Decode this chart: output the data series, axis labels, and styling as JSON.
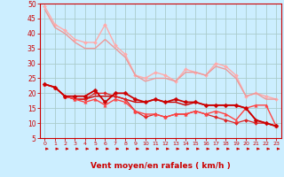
{
  "background_color": "#cceeff",
  "grid_color": "#aacccc",
  "xlabel": "Vent moyen/en rafales ( km/h )",
  "xlabel_color": "#cc0000",
  "tick_color": "#cc0000",
  "xlim": [
    -0.5,
    23.5
  ],
  "ylim": [
    5,
    50
  ],
  "yticks": [
    5,
    10,
    15,
    20,
    25,
    30,
    35,
    40,
    45,
    50
  ],
  "xticks": [
    0,
    1,
    2,
    3,
    4,
    5,
    6,
    7,
    8,
    9,
    10,
    11,
    12,
    13,
    14,
    15,
    16,
    17,
    18,
    19,
    20,
    21,
    22,
    23
  ],
  "lines": [
    {
      "x": [
        0,
        1,
        2,
        3,
        4,
        5,
        6,
        7,
        8,
        9,
        10,
        11,
        12,
        13,
        14,
        15,
        16,
        17,
        18,
        19,
        20,
        21,
        22,
        23
      ],
      "y": [
        49,
        43,
        41,
        38,
        37,
        37,
        43,
        36,
        33,
        26,
        25,
        27,
        26,
        24,
        28,
        27,
        26,
        30,
        29,
        26,
        19,
        20,
        19,
        18
      ],
      "color": "#ffaaaa",
      "linewidth": 1.0,
      "marker": "D",
      "markersize": 2.0,
      "zorder": 2
    },
    {
      "x": [
        0,
        1,
        2,
        3,
        4,
        5,
        6,
        7,
        8,
        9,
        10,
        11,
        12,
        13,
        14,
        15,
        16,
        17,
        18,
        19,
        20,
        21,
        22,
        23
      ],
      "y": [
        48,
        42,
        40,
        37,
        35,
        35,
        38,
        35,
        32,
        26,
        24,
        25,
        25,
        24,
        27,
        27,
        26,
        29,
        28,
        25,
        19,
        20,
        18,
        18
      ],
      "color": "#ee9999",
      "linewidth": 1.0,
      "marker": null,
      "markersize": 0,
      "zorder": 2
    },
    {
      "x": [
        0,
        1,
        2,
        3,
        4,
        5,
        6,
        7,
        8,
        9,
        10,
        11,
        12,
        13,
        14,
        15,
        16,
        17,
        18,
        19,
        20,
        21,
        22,
        23
      ],
      "y": [
        23,
        22,
        19,
        19,
        19,
        21,
        17,
        20,
        20,
        18,
        17,
        18,
        17,
        18,
        17,
        17,
        16,
        16,
        16,
        16,
        15,
        11,
        10,
        9
      ],
      "color": "#cc0000",
      "linewidth": 1.3,
      "marker": "D",
      "markersize": 2.5,
      "zorder": 4
    },
    {
      "x": [
        0,
        1,
        2,
        3,
        4,
        5,
        6,
        7,
        8,
        9,
        10,
        11,
        12,
        13,
        14,
        15,
        16,
        17,
        18,
        19,
        20,
        21,
        22,
        23
      ],
      "y": [
        23,
        22,
        19,
        18,
        18,
        19,
        19,
        19,
        18,
        17,
        17,
        18,
        17,
        17,
        16,
        17,
        16,
        16,
        16,
        16,
        15,
        11,
        10,
        9
      ],
      "color": "#cc0000",
      "linewidth": 1.0,
      "marker": null,
      "markersize": 0,
      "zorder": 3
    },
    {
      "x": [
        0,
        1,
        2,
        3,
        4,
        5,
        6,
        7,
        8,
        9,
        10,
        11,
        12,
        13,
        14,
        15,
        16,
        17,
        18,
        19,
        20,
        21,
        22,
        23
      ],
      "y": [
        23,
        22,
        19,
        18,
        18,
        20,
        20,
        19,
        18,
        14,
        12,
        13,
        12,
        13,
        13,
        14,
        13,
        12,
        11,
        10,
        11,
        10,
        10,
        9
      ],
      "color": "#dd2222",
      "linewidth": 0.9,
      "marker": "D",
      "markersize": 2.0,
      "zorder": 3
    },
    {
      "x": [
        0,
        1,
        2,
        3,
        4,
        5,
        6,
        7,
        8,
        9,
        10,
        11,
        12,
        13,
        14,
        15,
        16,
        17,
        18,
        19,
        20,
        21,
        22,
        23
      ],
      "y": [
        23,
        22,
        19,
        18,
        17,
        18,
        16,
        18,
        17,
        14,
        13,
        13,
        12,
        13,
        13,
        14,
        13,
        14,
        13,
        11,
        15,
        16,
        16,
        9
      ],
      "color": "#ff4444",
      "linewidth": 1.0,
      "marker": "^",
      "markersize": 2.5,
      "zorder": 3
    }
  ]
}
